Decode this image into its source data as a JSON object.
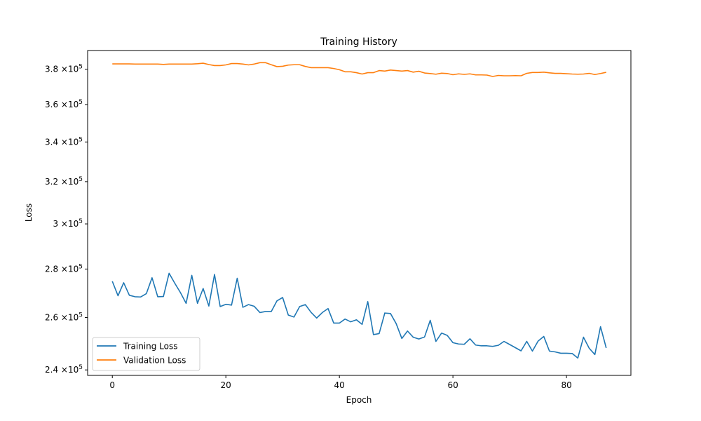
{
  "chart_data": {
    "type": "line",
    "title": "Training History",
    "xlabel": "Epoch",
    "ylabel": "Loss",
    "yscale": "log",
    "xlim": [
      -4.35,
      91.35
    ],
    "ylim": [
      238000,
      391000
    ],
    "x_ticks": [
      0,
      20,
      40,
      60,
      80
    ],
    "x_tick_labels": [
      "0",
      "20",
      "40",
      "60",
      "80"
    ],
    "y_ticks": [
      240000,
      260000,
      280000,
      300000,
      320000,
      340000,
      360000,
      380000
    ],
    "y_tick_labels": [
      {
        "m": "2.4",
        "e": "5"
      },
      {
        "m": "2.6",
        "e": "5"
      },
      {
        "m": "2.8",
        "e": "5"
      },
      {
        "m": "3",
        "e": "5"
      },
      {
        "m": "3.2",
        "e": "5"
      },
      {
        "m": "3.4",
        "e": "5"
      },
      {
        "m": "3.6",
        "e": "5"
      },
      {
        "m": "3.8",
        "e": "5"
      }
    ],
    "y_tick_times": "×10",
    "legend_position": "lower-left",
    "grid": false,
    "series": [
      {
        "name": "Training Loss",
        "color": "#1f77b4",
        "x": [
          0,
          1,
          2,
          3,
          4,
          5,
          6,
          7,
          8,
          9,
          10,
          11,
          12,
          13,
          14,
          15,
          16,
          17,
          18,
          19,
          20,
          21,
          22,
          23,
          24,
          25,
          26,
          27,
          28,
          29,
          30,
          31,
          32,
          33,
          34,
          35,
          36,
          37,
          38,
          39,
          40,
          41,
          42,
          43,
          44,
          45,
          46,
          47,
          48,
          49,
          50,
          51,
          52,
          53,
          54,
          55,
          56,
          57,
          58,
          59,
          60,
          61,
          62,
          63,
          64,
          65,
          66,
          67,
          68,
          69,
          70,
          71,
          72,
          73,
          74,
          75,
          76,
          77,
          78,
          79,
          80,
          81,
          82,
          83,
          84,
          85,
          86,
          87
        ],
        "values": [
          274800,
          268800,
          274200,
          269000,
          268400,
          268300,
          269700,
          276300,
          268400,
          268500,
          278200,
          274000,
          270100,
          265700,
          277300,
          265700,
          271800,
          264600,
          277700,
          264400,
          265300,
          265000,
          276100,
          264100,
          265200,
          264500,
          262000,
          262400,
          262400,
          266700,
          268100,
          261000,
          260200,
          264400,
          265200,
          262100,
          259800,
          262000,
          263600,
          257800,
          257800,
          259400,
          258300,
          259100,
          257300,
          266400,
          253300,
          253700,
          261800,
          261600,
          257600,
          251800,
          254700,
          252300,
          251600,
          252400,
          258900,
          250700,
          253900,
          253000,
          250200,
          249700,
          249600,
          251700,
          249300,
          249000,
          249000,
          248800,
          249200,
          250700,
          249500,
          248300,
          247100,
          250700,
          247000,
          250800,
          252600,
          247000,
          246700,
          246200,
          246200,
          246100,
          244400,
          252300,
          248100,
          245700,
          256400,
          248200
        ]
      },
      {
        "name": "Validation Loss",
        "color": "#ff7f0e",
        "x": [
          0,
          1,
          2,
          3,
          4,
          5,
          6,
          7,
          8,
          9,
          10,
          11,
          12,
          13,
          14,
          15,
          16,
          17,
          18,
          19,
          20,
          21,
          22,
          23,
          24,
          25,
          26,
          27,
          28,
          29,
          30,
          31,
          32,
          33,
          34,
          35,
          36,
          37,
          38,
          39,
          40,
          41,
          42,
          43,
          44,
          45,
          46,
          47,
          48,
          49,
          50,
          51,
          52,
          53,
          54,
          55,
          56,
          57,
          58,
          59,
          60,
          61,
          62,
          63,
          64,
          65,
          66,
          67,
          68,
          69,
          70,
          71,
          72,
          73,
          74,
          75,
          76,
          77,
          78,
          79,
          80,
          81,
          82,
          83,
          84,
          85,
          86,
          87
        ],
        "values": [
          383100,
          383100,
          383100,
          383100,
          383000,
          383000,
          383000,
          383000,
          383000,
          382800,
          383000,
          383000,
          383000,
          383000,
          383000,
          383200,
          383500,
          382700,
          382100,
          382100,
          382500,
          383300,
          383300,
          383000,
          382500,
          383000,
          383800,
          383800,
          382600,
          381500,
          381700,
          382400,
          382600,
          382600,
          381600,
          380900,
          380900,
          380900,
          380900,
          380400,
          379700,
          378500,
          378500,
          378000,
          377200,
          378000,
          378000,
          379200,
          378900,
          379500,
          379200,
          378900,
          379200,
          378300,
          378800,
          377800,
          377500,
          377100,
          377700,
          377500,
          376800,
          377300,
          377000,
          377300,
          376700,
          376700,
          376600,
          375800,
          376400,
          376200,
          376200,
          376300,
          376200,
          377600,
          378100,
          378100,
          378300,
          377900,
          377600,
          377600,
          377400,
          377200,
          377100,
          377200,
          377600,
          376900,
          377500,
          378200
        ]
      }
    ]
  }
}
